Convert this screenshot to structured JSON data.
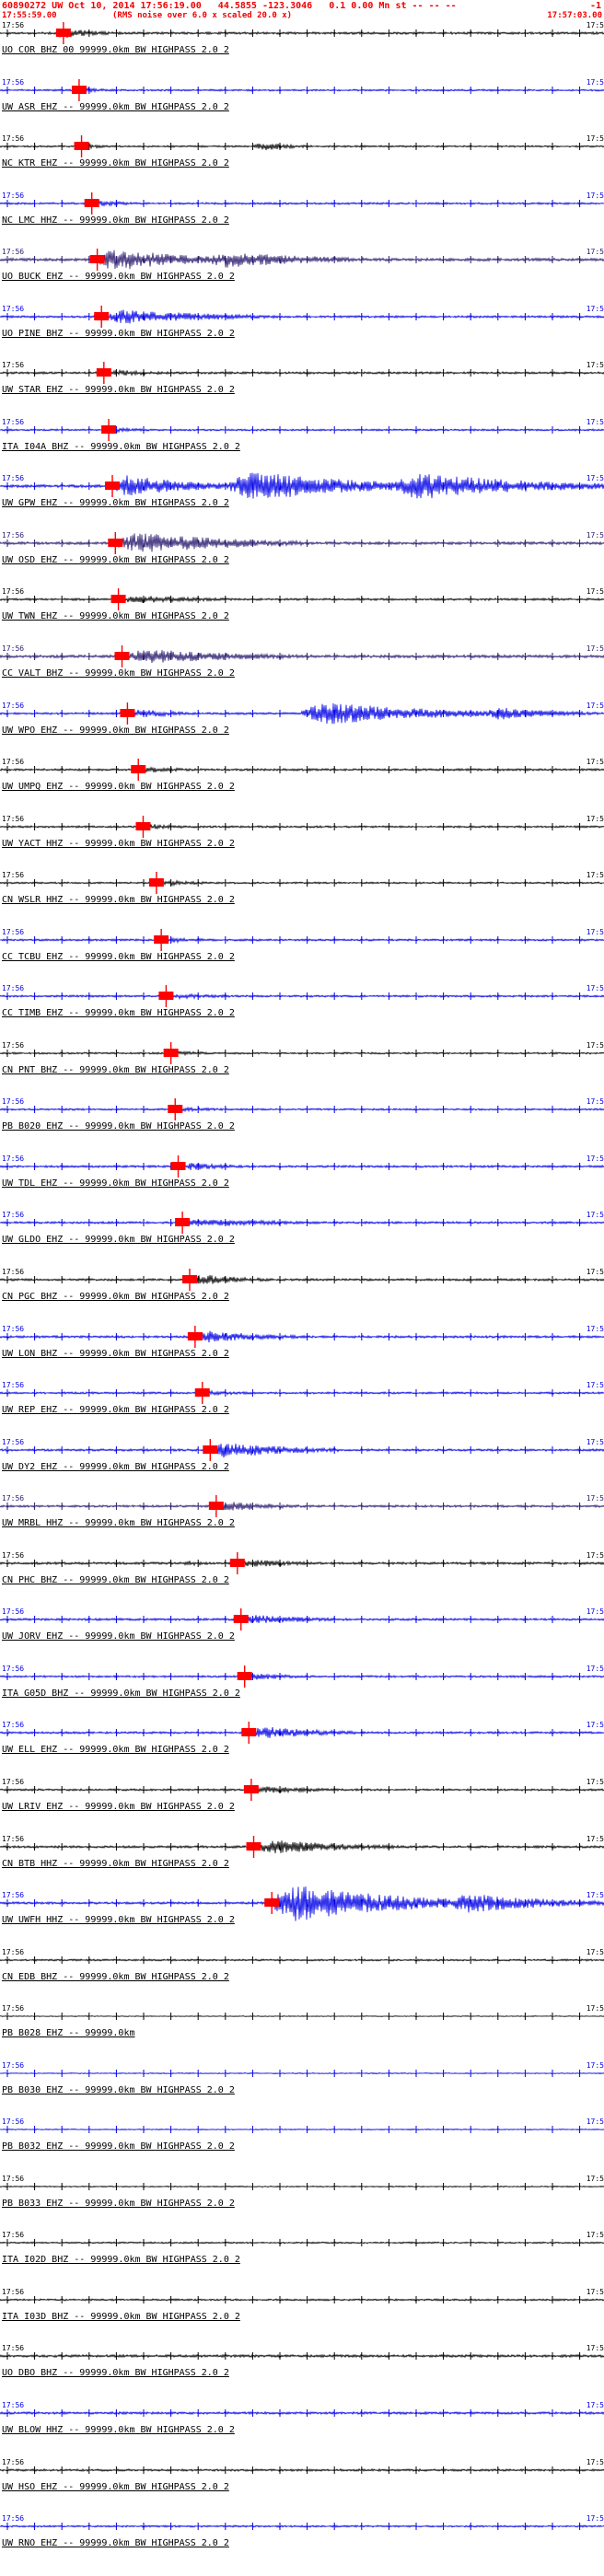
{
  "header": {
    "line1": "60890272 UW Oct 10, 2014 17:56:19.00   44.5855 -123.3046   0.1 0.00 Mn st -- -- --",
    "line1_right": "-1",
    "window_start": "17:55:59.00",
    "note": "(RMS noise over 6.0 x scaled 20.0 x)",
    "window_end": "17:57:03.00",
    "color": "#f00000"
  },
  "axis": {
    "left_time": "17:56",
    "right_time": "17:5",
    "tick_count": 22
  },
  "colors": {
    "black": "#000000",
    "blue": "#0000e6",
    "navy": "#2a1a6e",
    "pick": "#ff0000"
  },
  "traces": [
    {
      "label": "UO COR BHZ 00 99999.0km BW HIGHPASS 2.0 2",
      "color": "black",
      "pick": 0.105,
      "noise": 1.3,
      "bursts": [
        [
          0.09,
          0.2,
          6
        ]
      ]
    },
    {
      "label": "UW ASR EHZ -- 99999.0km BW HIGHPASS 2.0 2",
      "color": "blue",
      "pick": 0.131,
      "noise": 1.0,
      "bursts": [
        [
          0.131,
          0.23,
          2.5
        ]
      ]
    },
    {
      "label": "NC KTR EHZ -- 99999.0km BW HIGHPASS 2.0 2",
      "color": "black",
      "pick": 0.135,
      "noise": 1.0,
      "bursts": [
        [
          0.135,
          0.21,
          2.5
        ],
        [
          0.42,
          0.52,
          5
        ]
      ]
    },
    {
      "label": "NC LMC HHZ -- 99999.0km BW HIGHPASS 2.0 2",
      "color": "blue",
      "pick": 0.152,
      "noise": 1.1,
      "bursts": [
        [
          0.152,
          0.27,
          3
        ]
      ]
    },
    {
      "label": "UO BUCK EHZ -- 99999.0km BW HIGHPASS 2.0 2",
      "color": "navy",
      "pick": 0.161,
      "noise": 1.6,
      "bursts": [
        [
          0.16,
          0.38,
          13
        ],
        [
          0.34,
          0.62,
          9
        ]
      ]
    },
    {
      "label": "UO PINE BHZ -- 99999.0km BW HIGHPASS 2.0 2",
      "color": "blue",
      "pick": 0.168,
      "noise": 1.2,
      "bursts": [
        [
          0.168,
          0.46,
          8
        ]
      ]
    },
    {
      "label": "UW STAR EHZ -- 99999.0km BW HIGHPASS 2.0 2",
      "color": "black",
      "pick": 0.172,
      "noise": 1.2,
      "bursts": [
        [
          0.172,
          0.33,
          3.5
        ]
      ]
    },
    {
      "label": "ITA I04A BHZ -- 99999.0km BW HIGHPASS 2.0 2",
      "color": "blue",
      "pick": 0.18,
      "noise": 1.0,
      "bursts": [
        [
          0.18,
          0.3,
          2.5
        ]
      ]
    },
    {
      "label": "UW GPW EHZ -- 99999.0km BW HIGHPASS 2.0 2",
      "color": "blue",
      "pick": 0.186,
      "noise": 1.6,
      "bursts": [
        [
          0.186,
          0.4,
          12
        ],
        [
          0.38,
          0.7,
          17
        ],
        [
          0.65,
          1.0,
          15
        ]
      ]
    },
    {
      "label": "UW OSD EHZ -- 99999.0km BW HIGHPASS 2.0 2",
      "color": "navy",
      "pick": 0.191,
      "noise": 1.5,
      "bursts": [
        [
          0.19,
          0.5,
          12
        ]
      ]
    },
    {
      "label": "UW TWN EHZ -- 99999.0km BW HIGHPASS 2.0 2",
      "color": "black",
      "pick": 0.196,
      "noise": 1.2,
      "bursts": [
        [
          0.196,
          0.42,
          4.5
        ]
      ]
    },
    {
      "label": "CC VALT BHZ -- 99999.0km BW HIGHPASS 2.0 2",
      "color": "navy",
      "pick": 0.202,
      "noise": 1.6,
      "bursts": [
        [
          0.202,
          0.52,
          8
        ]
      ]
    },
    {
      "label": "UW WPO EHZ -- 99999.0km BW HIGHPASS 2.0 2",
      "color": "blue",
      "pick": 0.211,
      "noise": 1.2,
      "bursts": [
        [
          0.211,
          0.34,
          5
        ],
        [
          0.5,
          0.82,
          13
        ],
        [
          0.8,
          1.0,
          7
        ]
      ]
    },
    {
      "label": "UW UMPQ EHZ -- 99999.0km BW HIGHPASS 2.0 2",
      "color": "black",
      "pick": 0.229,
      "noise": 1.2,
      "bursts": [
        [
          0.229,
          0.36,
          3.5
        ]
      ]
    },
    {
      "label": "UW YACT HHZ -- 99999.0km BW HIGHPASS 2.0 2",
      "color": "black",
      "pick": 0.237,
      "noise": 1.1,
      "bursts": [
        [
          0.237,
          0.36,
          3
        ]
      ]
    },
    {
      "label": "CN WSLR HHZ -- 99999.0km BW HIGHPASS 2.0 2",
      "color": "black",
      "pick": 0.259,
      "noise": 1.0,
      "bursts": [
        [
          0.259,
          0.4,
          3
        ]
      ]
    },
    {
      "label": "CC TCBU EHZ -- 99999.0km BW HIGHPASS 2.0 2",
      "color": "blue",
      "pick": 0.267,
      "noise": 1.1,
      "bursts": [
        [
          0.267,
          0.4,
          3
        ]
      ]
    },
    {
      "label": "CC TIMB EHZ -- 99999.0km BW HIGHPASS 2.0 2",
      "color": "blue",
      "pick": 0.275,
      "noise": 1.1,
      "bursts": [
        [
          0.275,
          0.43,
          3.2
        ]
      ]
    },
    {
      "label": "CN PNT BHZ -- 99999.0km BW HIGHPASS 2.0 2",
      "color": "black",
      "pick": 0.283,
      "noise": 1.0,
      "bursts": [
        [
          0.283,
          0.4,
          2.5
        ]
      ]
    },
    {
      "label": "PB B020 EHZ -- 99999.0km BW HIGHPASS 2.0 2",
      "color": "blue",
      "pick": 0.29,
      "noise": 1.0,
      "bursts": [
        [
          0.29,
          0.43,
          2.6
        ]
      ]
    },
    {
      "label": "UW TDL EHZ -- 99999.0km BW HIGHPASS 2.0 2",
      "color": "blue",
      "pick": 0.295,
      "noise": 1.2,
      "bursts": [
        [
          0.295,
          0.46,
          4
        ]
      ]
    },
    {
      "label": "UW GLDO EHZ -- 99999.0km BW HIGHPASS 2.0 2",
      "color": "blue",
      "pick": 0.302,
      "noise": 1.2,
      "bursts": [
        [
          0.302,
          0.56,
          5
        ]
      ]
    },
    {
      "label": "CN PGC BHZ -- 99999.0km BW HIGHPASS 2.0 2",
      "color": "black",
      "pick": 0.314,
      "noise": 1.2,
      "bursts": [
        [
          0.314,
          0.46,
          6
        ]
      ]
    },
    {
      "label": "UW LON BHZ -- 99999.0km BW HIGHPASS 2.0 2",
      "color": "blue",
      "pick": 0.323,
      "noise": 1.3,
      "bursts": [
        [
          0.323,
          0.52,
          6.5
        ]
      ]
    },
    {
      "label": "UW REP EHZ -- 99999.0km BW HIGHPASS 2.0 2",
      "color": "blue",
      "pick": 0.335,
      "noise": 1.1,
      "bursts": [
        [
          0.335,
          0.46,
          3
        ]
      ]
    },
    {
      "label": "UW DY2 EHZ -- 99999.0km BW HIGHPASS 2.0 2",
      "color": "blue",
      "pick": 0.348,
      "noise": 1.2,
      "bursts": [
        [
          0.348,
          0.56,
          9
        ]
      ]
    },
    {
      "label": "UW MRBL HHZ -- 99999.0km BW HIGHPASS 2.0 2",
      "color": "navy",
      "pick": 0.358,
      "noise": 1.2,
      "bursts": [
        [
          0.358,
          0.53,
          5.5
        ]
      ]
    },
    {
      "label": "CN PHC BHZ -- 99999.0km BW HIGHPASS 2.0 2",
      "color": "black",
      "pick": 0.393,
      "noise": 1.3,
      "bursts": [
        [
          0.3,
          0.38,
          3
        ],
        [
          0.393,
          0.56,
          4.5
        ]
      ]
    },
    {
      "label": "UW JORV EHZ -- 99999.0km BW HIGHPASS 2.0 2",
      "color": "blue",
      "pick": 0.399,
      "noise": 1.2,
      "bursts": [
        [
          0.399,
          0.6,
          5
        ]
      ]
    },
    {
      "label": "ITA G05D BHZ -- 99999.0km BW HIGHPASS 2.0 2",
      "color": "blue",
      "pick": 0.405,
      "noise": 1.1,
      "bursts": [
        [
          0.405,
          0.56,
          3.5
        ]
      ]
    },
    {
      "label": "UW ELL EHZ -- 99999.0km BW HIGHPASS 2.0 2",
      "color": "blue",
      "pick": 0.412,
      "noise": 1.2,
      "bursts": [
        [
          0.412,
          0.6,
          7
        ]
      ]
    },
    {
      "label": "UW LRIV EHZ -- 99999.0km BW HIGHPASS 2.0 2",
      "color": "black",
      "pick": 0.416,
      "noise": 1.1,
      "bursts": [
        [
          0.416,
          0.6,
          4
        ]
      ]
    },
    {
      "label": "CN BTB HHZ -- 99999.0km BW HIGHPASS 2.0 2",
      "color": "black",
      "pick": 0.42,
      "noise": 1.3,
      "bursts": [
        [
          0.42,
          0.66,
          8
        ]
      ]
    },
    {
      "label": "UW UWFH HHZ -- 99999.0km BW HIGHPASS 2.0 2",
      "color": "blue",
      "pick": 0.45,
      "noise": 1.3,
      "bursts": [
        [
          0.45,
          0.78,
          20
        ],
        [
          0.74,
          1.0,
          11
        ]
      ]
    },
    {
      "label": "CN EDB BHZ -- 99999.0km BW HIGHPASS 2.0 2",
      "color": "black",
      "pick": null,
      "noise": 1.0,
      "bursts": []
    },
    {
      "label": "PB B028 EHZ -- 99999.0km",
      "color": "black",
      "pick": null,
      "noise": 0.5,
      "bursts": []
    },
    {
      "label": "PB B030 EHZ -- 99999.0km BW HIGHPASS 2.0 2",
      "color": "blue",
      "pick": null,
      "noise": 0.6,
      "bursts": []
    },
    {
      "label": "PB B032 EHZ -- 99999.0km BW HIGHPASS 2.0 2",
      "color": "blue",
      "pick": null,
      "noise": 0.6,
      "bursts": []
    },
    {
      "label": "PB B033 EHZ -- 99999.0km BW HIGHPASS 2.0 2",
      "color": "black",
      "pick": null,
      "noise": 0.7,
      "bursts": []
    },
    {
      "label": "ITA I02D BHZ -- 99999.0km BW HIGHPASS 2.0 2",
      "color": "black",
      "pick": null,
      "noise": 0.9,
      "bursts": []
    },
    {
      "label": "ITA I03D BHZ -- 99999.0km BW HIGHPASS 2.0 2",
      "color": "black",
      "pick": null,
      "noise": 1.0,
      "bursts": []
    },
    {
      "label": "UO DBO BHZ -- 99999.0km BW HIGHPASS 2.0 2",
      "color": "black",
      "pick": null,
      "noise": 1.4,
      "bursts": []
    },
    {
      "label": "UW BLOW HHZ -- 99999.0km BW HIGHPASS 2.0 2",
      "color": "blue",
      "pick": null,
      "noise": 1.3,
      "bursts": []
    },
    {
      "label": "UW HSO EHZ -- 99999.0km BW HIGHPASS 2.0 2",
      "color": "black",
      "pick": null,
      "noise": 1.2,
      "bursts": []
    },
    {
      "label": "UW RNO EHZ -- 99999.0km BW HIGHPASS 2.0 2",
      "color": "blue",
      "pick": null,
      "noise": 1.0,
      "bursts": []
    }
  ]
}
